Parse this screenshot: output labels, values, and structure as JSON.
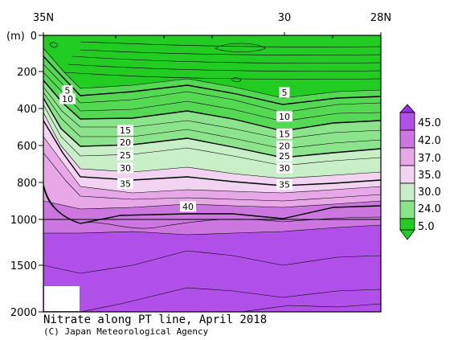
{
  "chart_data": {
    "type": "heatmap",
    "title": "Nitrate along PT line, April 2018",
    "credit": "(C) Japan Meteorological Agency",
    "y_unit": "(m)",
    "x_ticks": [
      "35N",
      "30",
      "28N"
    ],
    "y_ticks": [
      "0",
      "200",
      "400",
      "600",
      "800",
      "1000",
      "1500",
      "2000"
    ],
    "colorbar_ticks": [
      "45.0",
      "42.0",
      "37.0",
      "35.0",
      "30.0",
      "24.0",
      "5.0"
    ],
    "colors": {
      "low": "#22cc22",
      "mid": "#c8efc8",
      "transition": "#f2d4f2",
      "light_purple": "#e8a8e8",
      "purple": "#cc77e0",
      "deep_purple": "#b050e8",
      "lines": "#000000"
    },
    "contour_labels": [
      {
        "text": "5",
        "depth": 300,
        "lat": "34.5N"
      },
      {
        "text": "10",
        "depth": 345,
        "lat": "34.5N"
      },
      {
        "text": "15",
        "depth": 515,
        "lat": "33.3N"
      },
      {
        "text": "20",
        "depth": 580,
        "lat": "33.3N"
      },
      {
        "text": "25",
        "depth": 650,
        "lat": "33.3N"
      },
      {
        "text": "30",
        "depth": 720,
        "lat": "33.3N"
      },
      {
        "text": "35",
        "depth": 805,
        "lat": "33.3N"
      },
      {
        "text": "40",
        "depth": 930,
        "lat": "32N"
      },
      {
        "text": "5",
        "depth": 310,
        "lat": "30N"
      },
      {
        "text": "10",
        "depth": 440,
        "lat": "30N"
      },
      {
        "text": "15",
        "depth": 535,
        "lat": "30N"
      },
      {
        "text": "20",
        "depth": 600,
        "lat": "30N"
      },
      {
        "text": "25",
        "depth": 655,
        "lat": "30N"
      },
      {
        "text": "30",
        "depth": 720,
        "lat": "30N"
      },
      {
        "text": "35",
        "depth": 810,
        "lat": "30N"
      }
    ]
  }
}
